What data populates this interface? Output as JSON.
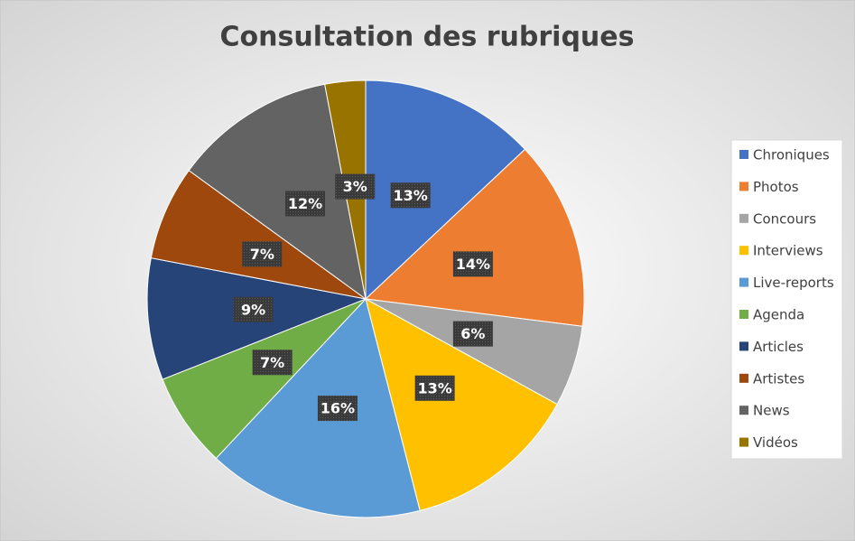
{
  "chart_data": {
    "type": "pie",
    "title": "Consultation des rubriques",
    "categories": [
      "Chroniques",
      "Photos",
      "Concours",
      "Interviews",
      "Live-reports",
      "Agenda",
      "Articles",
      "Artistes",
      "News",
      "Vidéos"
    ],
    "values": [
      13,
      14,
      6,
      13,
      16,
      7,
      9,
      7,
      12,
      3
    ],
    "value_labels": [
      "13%",
      "14%",
      "6%",
      "13%",
      "16%",
      "7%",
      "9%",
      "7%",
      "12%",
      "3%"
    ],
    "colors": [
      "#4472c4",
      "#ed7d31",
      "#a5a5a5",
      "#ffc000",
      "#5b9bd5",
      "#70ad47",
      "#264478",
      "#9e480e",
      "#636363",
      "#997300"
    ],
    "legend": "right"
  }
}
